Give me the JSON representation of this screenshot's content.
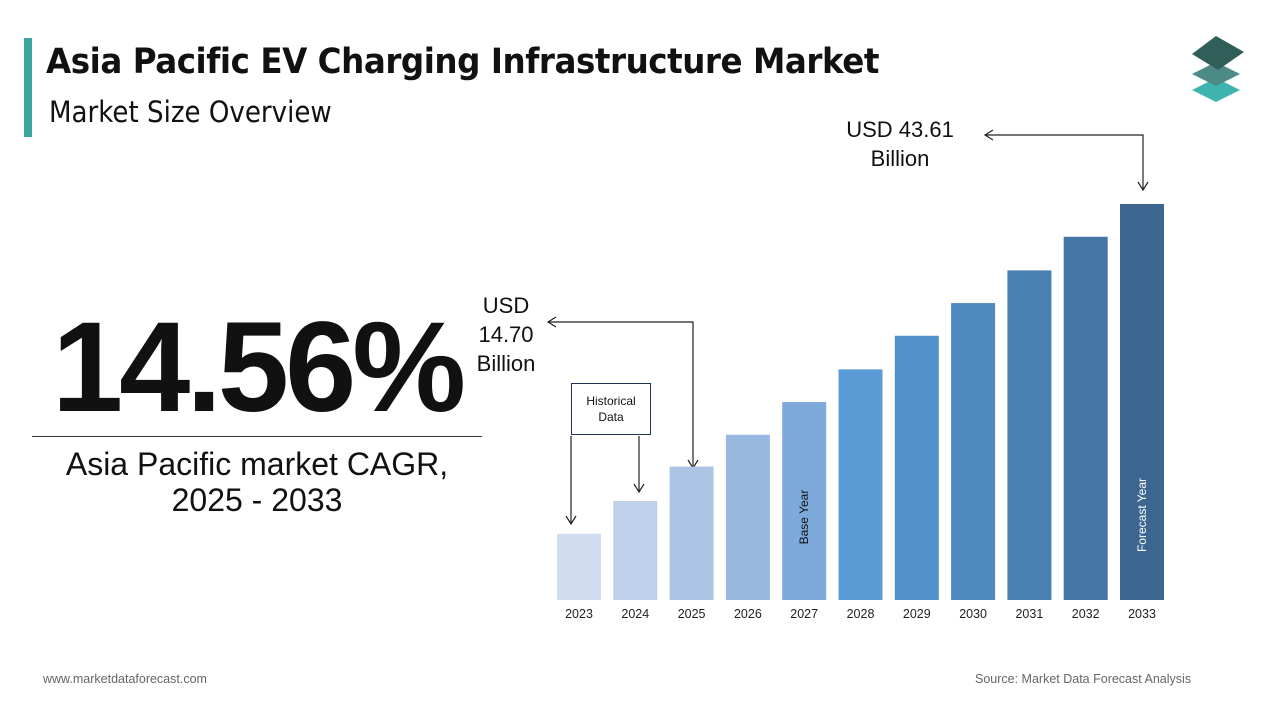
{
  "header": {
    "title": "Asia Pacific EV Charging Infrastructure Market",
    "subtitle": "Market Size Overview"
  },
  "highlight": {
    "cagr_value": "14.56%",
    "cagr_label_line1": "Asia Pacific market CAGR,",
    "cagr_label_line2": "2025 - 2033"
  },
  "annotations": {
    "end_value": [
      "USD 43.61",
      "Billion"
    ],
    "start_value": [
      "USD",
      "14.70",
      "Billion"
    ],
    "historical_box": [
      "Historical",
      "Data"
    ]
  },
  "footer": {
    "website": "www.marketdataforecast.com",
    "source": "Source: Market Data Forecast Analysis"
  },
  "logo": {
    "icon": "stacked-layers-icon",
    "colors": [
      "#2f5f58",
      "#4c8a83",
      "#3fb3b0"
    ]
  },
  "chart_data": {
    "type": "bar",
    "title": "",
    "xlabel": "",
    "ylabel": "",
    "unit": "USD Billion",
    "grid": false,
    "legend": "none",
    "categories": [
      "2023",
      "2024",
      "2025",
      "2026",
      "2027",
      "2028",
      "2029",
      "2030",
      "2031",
      "2032",
      "2033"
    ],
    "values": [
      7.3,
      10.9,
      14.7,
      18.2,
      21.8,
      25.4,
      29.1,
      32.7,
      36.3,
      40.0,
      43.61
    ],
    "colors": [
      "#d0dcef",
      "#bed0ea",
      "#adc5e5",
      "#99b8df",
      "#7eaadb",
      "#5b9bd5",
      "#5591cc",
      "#508abf",
      "#4a80b1",
      "#4575a2",
      "#3c6690"
    ],
    "bar_labels": {
      "2027": "Base Year",
      "2033": "Forecast Year"
    }
  }
}
